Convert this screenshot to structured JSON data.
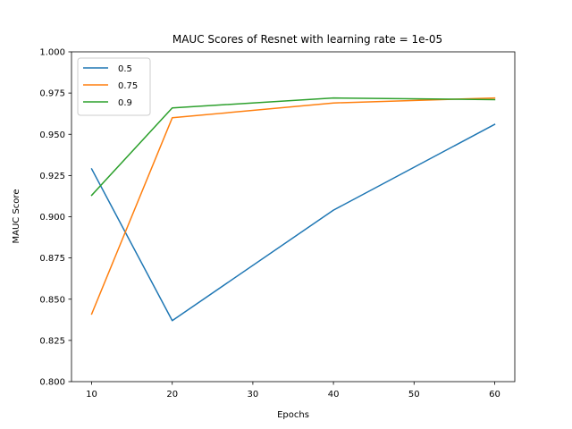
{
  "chart_data": {
    "type": "line",
    "title": "MAUC Scores of Resnet with learning rate = 1e-05",
    "xlabel": "Epochs",
    "ylabel": "MAUC Score",
    "xlim": [
      7.5,
      62.5
    ],
    "ylim": [
      0.8,
      1.0
    ],
    "xticks": [
      10,
      20,
      30,
      40,
      50,
      60
    ],
    "xtick_labels": [
      "10",
      "20",
      "30",
      "40",
      "50",
      "60"
    ],
    "yticks": [
      0.8,
      0.825,
      0.85,
      0.875,
      0.9,
      0.925,
      0.95,
      0.975,
      1.0
    ],
    "ytick_labels": [
      "0.800",
      "0.825",
      "0.850",
      "0.875",
      "0.900",
      "0.925",
      "0.950",
      "0.975",
      "1.000"
    ],
    "grid": false,
    "legend_position": "upper-left",
    "x": [
      10,
      20,
      40,
      60
    ],
    "series": [
      {
        "name": "0.5",
        "color": "#1f77b4",
        "values": [
          0.929,
          0.837,
          0.904,
          0.956
        ]
      },
      {
        "name": "0.75",
        "color": "#ff7f0e",
        "values": [
          0.841,
          0.96,
          0.969,
          0.972
        ]
      },
      {
        "name": "0.9",
        "color": "#2ca02c",
        "values": [
          0.913,
          0.966,
          0.972,
          0.971
        ]
      }
    ]
  }
}
